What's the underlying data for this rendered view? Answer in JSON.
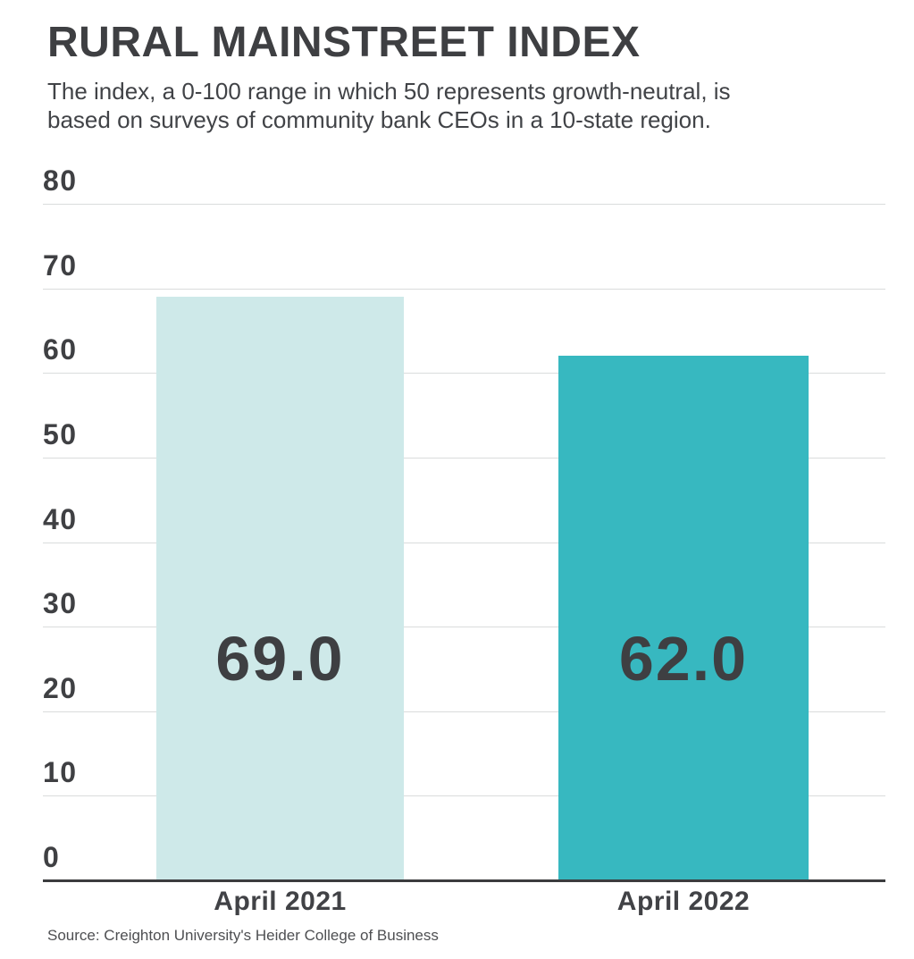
{
  "chart_data": {
    "type": "bar",
    "title": "RURAL MAINSTREET INDEX",
    "subtitle_lines": [
      "The index, a 0-100 range in which 50 represents growth-neutral, is",
      "based on surveys of community bank CEOs in a 10-state region."
    ],
    "categories": [
      "April 2021",
      "April 2022"
    ],
    "values": [
      69.0,
      62.0
    ],
    "value_labels": [
      "69.0",
      "62.0"
    ],
    "bar_colors": [
      "#cee9e9",
      "#37b8c0"
    ],
    "ylim": [
      0,
      80
    ],
    "yticks": [
      0,
      10,
      20,
      30,
      40,
      50,
      60,
      70,
      80
    ],
    "grid": true,
    "gridline_color": "#dadcdc",
    "axis_line_color": "#3b3c3e",
    "xlabel": "",
    "ylabel": "",
    "legend": null,
    "source": "Source: Creighton University's Heider College of Business"
  }
}
